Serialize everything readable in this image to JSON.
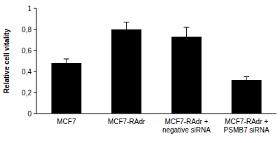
{
  "chart_data": {
    "type": "bar",
    "y_label": "Relative cell vitality",
    "categories": [
      "MCF7",
      "MCF7-RAdr",
      "MCF7-RAdr + negative siRNA",
      "MCF7-RAdr + PSMB7 siRNA"
    ],
    "values": [
      0.48,
      0.8,
      0.73,
      0.32
    ],
    "errors": [
      0.04,
      0.07,
      0.09,
      0.03
    ],
    "color": "#000000",
    "ylim": [
      0,
      1
    ],
    "yticks": [
      0,
      {
        "value": 0.2,
        "label": "0,2"
      },
      {
        "value": 0.4,
        "label": "0,4"
      },
      {
        "value": 0.6,
        "label": "0,6"
      },
      {
        "value": 0.8,
        "label": "0,8"
      },
      1
    ],
    "grid": false
  }
}
